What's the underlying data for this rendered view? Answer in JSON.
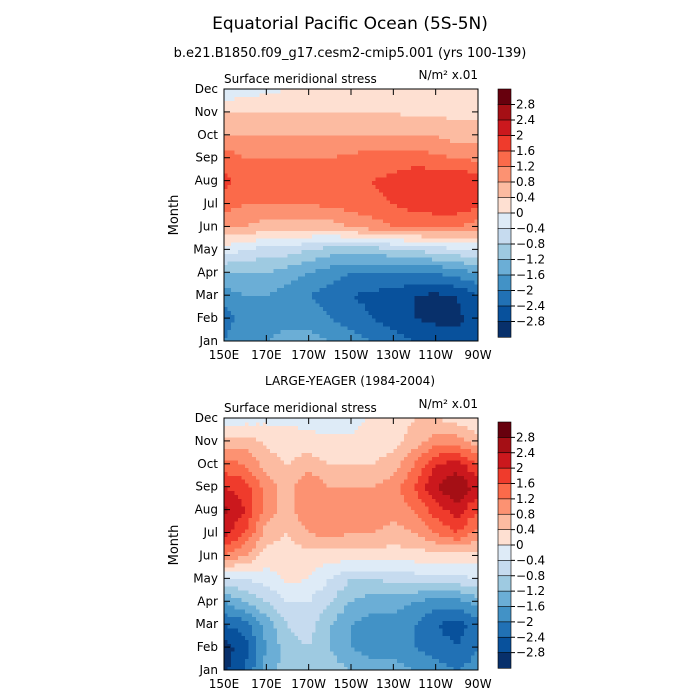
{
  "figure": {
    "title": "Equatorial Pacific Ocean (5S-5N)",
    "subtitle": "b.e21.B1850.f09_g17.cesm2-cmip5.001 (yrs 100-139)"
  },
  "colorbar": {
    "levels": [
      2.8,
      2.4,
      2,
      1.6,
      1.2,
      0.8,
      0.4,
      0,
      -0.4,
      -0.8,
      -1.2,
      -1.6,
      -2,
      -2.4,
      -2.8
    ],
    "level_labels": [
      "2.8",
      "2.4",
      "2",
      "1.6",
      "1.2",
      "0.8",
      "0.4",
      "0",
      "−0.4",
      "−0.8",
      "−1.2",
      "−1.6",
      "−2",
      "−2.4",
      "−2.8"
    ],
    "colors": [
      "#67000d",
      "#a50f15",
      "#cb181d",
      "#ef3b2c",
      "#fb6a4a",
      "#fc9272",
      "#fcbba1",
      "#fee0d2",
      "#deebf7",
      "#c6dbef",
      "#9ecae1",
      "#6baed6",
      "#4292c6",
      "#2171b5",
      "#08519c",
      "#08306b"
    ]
  },
  "chart_data": [
    {
      "type": "heatmap",
      "panel_label": "",
      "left_label": "Surface meridional stress",
      "right_label": "N/m² x.01",
      "ylabel": "Month",
      "xticks": [
        "150E",
        "170E",
        "170W",
        "150W",
        "130W",
        "110W",
        "90W"
      ],
      "yticks": [
        "Jan",
        "Feb",
        "Mar",
        "Apr",
        "May",
        "Jun",
        "Jul",
        "Aug",
        "Sep",
        "Oct",
        "Nov",
        "Dec"
      ],
      "x_lon_east": [
        150,
        160,
        170,
        180,
        190,
        200,
        210,
        220,
        230,
        240,
        250,
        260,
        270
      ],
      "values": [
        [
          -2.0,
          -1.6,
          -1.6,
          -1.4,
          -1.4,
          -1.6,
          -1.8,
          -2.0,
          -2.2,
          -2.4,
          -2.5,
          -2.6,
          -2.4
        ],
        [
          -2.2,
          -1.8,
          -1.8,
          -1.8,
          -1.8,
          -2.0,
          -2.2,
          -2.4,
          -2.6,
          -2.8,
          -2.9,
          -2.9,
          -2.6
        ],
        [
          -1.8,
          -1.6,
          -1.6,
          -1.8,
          -2.0,
          -2.2,
          -2.4,
          -2.5,
          -2.6,
          -2.8,
          -2.9,
          -2.8,
          -2.4
        ],
        [
          -1.2,
          -1.2,
          -1.2,
          -1.4,
          -1.6,
          -1.8,
          -2.0,
          -2.0,
          -2.0,
          -2.0,
          -2.0,
          -1.8,
          -1.6
        ],
        [
          -0.2,
          -0.4,
          -0.6,
          -0.6,
          -0.8,
          -1.0,
          -1.0,
          -1.0,
          -0.9,
          -0.8,
          -0.6,
          -0.5,
          -0.4
        ],
        [
          0.8,
          0.8,
          0.6,
          0.6,
          0.6,
          0.6,
          0.8,
          1.0,
          1.2,
          1.2,
          1.2,
          1.2,
          1.0
        ],
        [
          1.4,
          1.2,
          1.2,
          1.2,
          1.2,
          1.3,
          1.4,
          1.5,
          1.6,
          1.8,
          1.9,
          1.9,
          1.7
        ],
        [
          1.7,
          1.4,
          1.3,
          1.3,
          1.3,
          1.4,
          1.5,
          1.6,
          1.7,
          1.9,
          2.0,
          2.0,
          1.8
        ],
        [
          1.5,
          1.2,
          1.2,
          1.2,
          1.2,
          1.2,
          1.3,
          1.4,
          1.4,
          1.4,
          1.3,
          1.2,
          1.1
        ],
        [
          0.8,
          0.8,
          0.8,
          0.8,
          0.8,
          0.8,
          0.8,
          0.8,
          0.8,
          0.8,
          0.8,
          0.6,
          0.6
        ],
        [
          0.4,
          0.4,
          0.4,
          0.4,
          0.4,
          0.4,
          0.4,
          0.4,
          0.4,
          0.3,
          0.3,
          0.3,
          0.3
        ],
        [
          -0.4,
          -0.2,
          -0.1,
          0.0,
          0.1,
          0.2,
          0.2,
          0.2,
          0.1,
          0.1,
          0.1,
          0.1,
          0.1
        ]
      ],
      "xlim": [
        "150E",
        "90W"
      ],
      "ylim": [
        "Jan",
        "Dec"
      ]
    },
    {
      "type": "heatmap",
      "panel_label": "LARGE-YEAGER (1984-2004)",
      "left_label": "Surface meridional stress",
      "right_label": "N/m² x.01",
      "ylabel": "Month",
      "xticks": [
        "150E",
        "170E",
        "170W",
        "150W",
        "130W",
        "110W",
        "90W"
      ],
      "yticks": [
        "Jan",
        "Feb",
        "Mar",
        "Apr",
        "May",
        "Jun",
        "Jul",
        "Aug",
        "Sep",
        "Oct",
        "Nov",
        "Dec"
      ],
      "x_lon_east": [
        150,
        160,
        170,
        180,
        190,
        200,
        210,
        220,
        230,
        240,
        250,
        260,
        270
      ],
      "values": [
        [
          -2.9,
          -2.4,
          -1.4,
          -1.0,
          -0.8,
          -1.0,
          -1.2,
          -1.4,
          -1.4,
          -1.6,
          -1.8,
          -2.0,
          -1.8
        ],
        [
          -3.0,
          -2.6,
          -1.6,
          -1.0,
          -0.8,
          -1.2,
          -1.6,
          -1.8,
          -1.8,
          -2.0,
          -2.2,
          -2.4,
          -2.0
        ],
        [
          -2.4,
          -2.2,
          -1.4,
          -0.8,
          -0.6,
          -1.2,
          -1.6,
          -1.8,
          -1.8,
          -2.0,
          -2.4,
          -2.6,
          -2.2
        ],
        [
          -1.6,
          -1.2,
          -0.8,
          -0.4,
          -0.4,
          -0.8,
          -1.2,
          -1.4,
          -1.4,
          -1.6,
          -1.8,
          -1.8,
          -1.4
        ],
        [
          -0.4,
          -0.4,
          -0.2,
          0.1,
          0.0,
          -0.4,
          -0.8,
          -0.8,
          -0.7,
          -0.6,
          -0.6,
          -0.5,
          -0.4
        ],
        [
          1.2,
          0.8,
          0.2,
          0.2,
          0.2,
          0.2,
          0.2,
          0.2,
          0.2,
          0.2,
          0.2,
          0.2,
          0.2
        ],
        [
          2.2,
          1.6,
          0.6,
          0.4,
          0.8,
          1.0,
          0.8,
          0.8,
          0.6,
          0.8,
          1.2,
          1.6,
          1.0
        ],
        [
          2.5,
          2.0,
          1.0,
          0.6,
          1.2,
          1.0,
          1.0,
          1.2,
          1.0,
          1.2,
          1.8,
          2.2,
          1.6
        ],
        [
          2.0,
          1.8,
          1.0,
          0.6,
          1.2,
          0.8,
          0.8,
          0.8,
          1.0,
          1.6,
          2.4,
          2.8,
          2.2
        ],
        [
          1.4,
          1.2,
          0.6,
          0.4,
          0.6,
          0.4,
          0.4,
          0.4,
          0.6,
          1.2,
          2.0,
          2.2,
          1.6
        ],
        [
          0.6,
          0.6,
          0.3,
          0.2,
          0.2,
          0.1,
          0.1,
          0.2,
          0.2,
          0.6,
          1.0,
          1.0,
          0.6
        ],
        [
          -0.4,
          -0.2,
          -0.1,
          -0.1,
          -0.2,
          -0.3,
          -0.2,
          0.1,
          0.2,
          0.4,
          0.4,
          0.2,
          0.0
        ]
      ],
      "xlim": [
        "150E",
        "90W"
      ],
      "ylim": [
        "Jan",
        "Dec"
      ]
    }
  ]
}
